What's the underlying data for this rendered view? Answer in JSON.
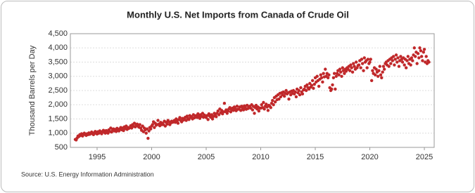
{
  "chart_data": {
    "type": "scatter",
    "title": "Monthly U.S. Net Imports from Canada of Crude Oil",
    "ylabel": "Thousand Barrels per Day",
    "source": "Source: U.S. Energy Information Administration",
    "color": "#c0282a",
    "grid": true,
    "xlim": [
      1992.55,
      2025.9
    ],
    "xticks": [
      1995,
      2000,
      2005,
      2010,
      2015,
      2020,
      2025
    ],
    "ylim": [
      500,
      4500
    ],
    "yticks": [
      500,
      {
        "value": 1000,
        "label": "1,000"
      },
      {
        "value": 1500,
        "label": "1,500"
      },
      {
        "value": 2000,
        "label": "2,000"
      },
      {
        "value": 2500,
        "label": "2,500"
      },
      {
        "value": 3000,
        "label": "3,000"
      },
      {
        "value": 3500,
        "label": "3,500"
      },
      {
        "value": 4000,
        "label": "4,000"
      },
      {
        "value": 4500,
        "label": "4,500"
      }
    ],
    "x": [
      1993,
      1993.08,
      1993.17,
      1993.25,
      1993.33,
      1993.42,
      1993.5,
      1993.58,
      1993.67,
      1993.75,
      1993.83,
      1993.92,
      1994,
      1994.08,
      1994.17,
      1994.25,
      1994.33,
      1994.42,
      1994.5,
      1994.58,
      1994.67,
      1994.75,
      1994.83,
      1994.92,
      1995,
      1995.08,
      1995.17,
      1995.25,
      1995.33,
      1995.42,
      1995.5,
      1995.58,
      1995.67,
      1995.75,
      1995.83,
      1995.92,
      1996,
      1996.08,
      1996.17,
      1996.25,
      1996.33,
      1996.42,
      1996.5,
      1996.58,
      1996.67,
      1996.75,
      1996.83,
      1996.92,
      1997,
      1997.08,
      1997.17,
      1997.25,
      1997.33,
      1997.42,
      1997.5,
      1997.58,
      1997.67,
      1997.75,
      1997.83,
      1997.92,
      1998,
      1998.08,
      1998.17,
      1998.25,
      1998.33,
      1998.42,
      1998.5,
      1998.58,
      1998.67,
      1998.75,
      1998.83,
      1998.92,
      1999,
      1999.08,
      1999.17,
      1999.25,
      1999.33,
      1999.42,
      1999.5,
      1999.58,
      1999.67,
      1999.75,
      1999.83,
      1999.92,
      2000,
      2000.08,
      2000.17,
      2000.25,
      2000.33,
      2000.42,
      2000.5,
      2000.58,
      2000.67,
      2000.75,
      2000.83,
      2000.92,
      2001,
      2001.08,
      2001.17,
      2001.25,
      2001.33,
      2001.42,
      2001.5,
      2001.58,
      2001.67,
      2001.75,
      2001.83,
      2001.92,
      2002,
      2002.08,
      2002.17,
      2002.25,
      2002.33,
      2002.42,
      2002.5,
      2002.58,
      2002.67,
      2002.75,
      2002.83,
      2002.92,
      2003,
      2003.08,
      2003.17,
      2003.25,
      2003.33,
      2003.42,
      2003.5,
      2003.58,
      2003.67,
      2003.75,
      2003.83,
      2003.92,
      2004,
      2004.08,
      2004.17,
      2004.25,
      2004.33,
      2004.42,
      2004.5,
      2004.58,
      2004.67,
      2004.75,
      2004.83,
      2004.92,
      2005,
      2005.08,
      2005.17,
      2005.25,
      2005.33,
      2005.42,
      2005.5,
      2005.58,
      2005.67,
      2005.75,
      2005.83,
      2005.92,
      2006,
      2006.08,
      2006.17,
      2006.25,
      2006.33,
      2006.42,
      2006.5,
      2006.58,
      2006.67,
      2006.75,
      2006.83,
      2006.92,
      2007,
      2007.08,
      2007.17,
      2007.25,
      2007.33,
      2007.42,
      2007.5,
      2007.58,
      2007.67,
      2007.75,
      2007.83,
      2007.92,
      2008,
      2008.08,
      2008.17,
      2008.25,
      2008.33,
      2008.42,
      2008.5,
      2008.58,
      2008.67,
      2008.75,
      2008.83,
      2008.92,
      2009,
      2009.08,
      2009.17,
      2009.25,
      2009.33,
      2009.42,
      2009.5,
      2009.58,
      2009.67,
      2009.75,
      2009.83,
      2009.92,
      2010,
      2010.08,
      2010.17,
      2010.25,
      2010.33,
      2010.42,
      2010.5,
      2010.58,
      2010.67,
      2010.75,
      2010.83,
      2010.92,
      2011,
      2011.08,
      2011.17,
      2011.25,
      2011.33,
      2011.42,
      2011.5,
      2011.58,
      2011.67,
      2011.75,
      2011.83,
      2011.92,
      2012,
      2012.08,
      2012.17,
      2012.25,
      2012.33,
      2012.42,
      2012.5,
      2012.58,
      2012.67,
      2012.75,
      2012.83,
      2012.92,
      2013,
      2013.08,
      2013.17,
      2013.25,
      2013.33,
      2013.42,
      2013.5,
      2013.58,
      2013.67,
      2013.75,
      2013.83,
      2013.92,
      2014,
      2014.08,
      2014.17,
      2014.25,
      2014.33,
      2014.42,
      2014.5,
      2014.58,
      2014.67,
      2014.75,
      2014.83,
      2014.92,
      2015,
      2015.08,
      2015.17,
      2015.25,
      2015.33,
      2015.42,
      2015.5,
      2015.58,
      2015.67,
      2015.75,
      2015.83,
      2015.92,
      2016,
      2016.08,
      2016.17,
      2016.25,
      2016.33,
      2016.42,
      2016.5,
      2016.58,
      2016.67,
      2016.75,
      2016.83,
      2016.92,
      2017,
      2017.08,
      2017.17,
      2017.25,
      2017.33,
      2017.42,
      2017.5,
      2017.58,
      2017.67,
      2017.75,
      2017.83,
      2017.92,
      2018,
      2018.08,
      2018.17,
      2018.25,
      2018.33,
      2018.42,
      2018.5,
      2018.58,
      2018.67,
      2018.75,
      2018.83,
      2018.92,
      2019,
      2019.08,
      2019.17,
      2019.25,
      2019.33,
      2019.42,
      2019.5,
      2019.58,
      2019.67,
      2019.75,
      2019.83,
      2019.92,
      2020,
      2020.08,
      2020.17,
      2020.25,
      2020.33,
      2020.42,
      2020.5,
      2020.58,
      2020.67,
      2020.75,
      2020.83,
      2020.92,
      2021,
      2021.08,
      2021.17,
      2021.25,
      2021.33,
      2021.42,
      2021.5,
      2021.58,
      2021.67,
      2021.75,
      2021.83,
      2021.92,
      2022,
      2022.08,
      2022.17,
      2022.25,
      2022.33,
      2022.42,
      2022.5,
      2022.58,
      2022.67,
      2022.75,
      2022.83,
      2022.92,
      2023,
      2023.08,
      2023.17,
      2023.25,
      2023.33,
      2023.42,
      2023.5,
      2023.58,
      2023.67,
      2023.75,
      2023.83,
      2023.92,
      2024,
      2024.08,
      2024.17,
      2024.25,
      2024.33,
      2024.42,
      2024.5,
      2024.58,
      2024.67,
      2024.75,
      2024.83,
      2024.92,
      2025,
      2025.08,
      2025.17,
      2025.25,
      2025.33,
      2025.42
    ],
    "values": [
      780,
      760,
      830,
      900,
      880,
      950,
      920,
      980,
      900,
      960,
      1000,
      950,
      920,
      980,
      950,
      1010,
      960,
      1000,
      1040,
      980,
      950,
      1020,
      1060,
      990,
      970,
      1050,
      1000,
      1080,
      1020,
      980,
      1060,
      1100,
      1030,
      1000,
      1090,
      1050,
      1000,
      1120,
      1060,
      1180,
      1040,
      1100,
      1150,
      1080,
      1130,
      1060,
      1170,
      1100,
      1080,
      1150,
      1200,
      1120,
      1180,
      1090,
      1220,
      1160,
      1250,
      1130,
      1200,
      1170,
      1200,
      1260,
      1180,
      1300,
      1240,
      1350,
      1220,
      1280,
      1320,
      1250,
      1210,
      1300,
      1180,
      1100,
      1250,
      1050,
      1180,
      1120,
      1000,
      1150,
      820,
      1080,
      1200,
      1150,
      1250,
      1300,
      1400,
      1200,
      1350,
      1280,
      1300,
      1450,
      1320,
      1260,
      1380,
      1300,
      1350,
      1300,
      1420,
      1250,
      1380,
      1320,
      1450,
      1400,
      1300,
      1360,
      1420,
      1380,
      1400,
      1450,
      1380,
      1500,
      1420,
      1350,
      1480,
      1550,
      1450,
      1400,
      1520,
      1460,
      1500,
      1560,
      1450,
      1600,
      1520,
      1480,
      1620,
      1550,
      1580,
      1500,
      1650,
      1540,
      1580,
      1620,
      1550,
      1680,
      1600,
      1520,
      1650,
      1590,
      1700,
      1560,
      1640,
      1600,
      1550,
      1620,
      1480,
      1680,
      1600,
      1560,
      1650,
      1500,
      1590,
      1700,
      1630,
      1580,
      1700,
      1780,
      1650,
      1850,
      1720,
      1800,
      1680,
      1750,
      2050,
      1760,
      1820,
      1700,
      1780,
      1850,
      1900,
      1750,
      1820,
      1880,
      1800,
      1920,
      1860,
      1790,
      1950,
      1840,
      1850,
      1920,
      1800,
      1950,
      1880,
      1820,
      1960,
      1900,
      1840,
      1980,
      1870,
      1910,
      1950,
      1880,
      2000,
      1820,
      1940,
      1700,
      1900,
      1980,
      1850,
      1920,
      1780,
      1880,
      1880,
      2000,
      1900,
      2080,
      1850,
      1950,
      2020,
      1920,
      1800,
      1980,
      1950,
      1900,
      2050,
      2150,
      2000,
      2250,
      2100,
      2300,
      2180,
      2350,
      2200,
      2400,
      2280,
      2420,
      2350,
      2450,
      2300,
      2400,
      2500,
      2380,
      2420,
      2200,
      2450,
      2350,
      2480,
      2400,
      2500,
      2380,
      2450,
      2280,
      2550,
      2420,
      2500,
      2350,
      2600,
      2450,
      2380,
      2520,
      2550,
      2650,
      2500,
      2700,
      2600,
      2550,
      2750,
      2620,
      2680,
      2850,
      2580,
      2720,
      2950,
      2800,
      3000,
      2850,
      2650,
      2900,
      3050,
      2950,
      2800,
      3100,
      2980,
      3250,
      3000,
      3100,
      2950,
      3050,
      2600,
      2500,
      2550,
      2700,
      2950,
      3100,
      2550,
      3000,
      3100,
      3200,
      3050,
      3250,
      3150,
      3000,
      3300,
      3200,
      3100,
      3250,
      3180,
      3300,
      3250,
      3350,
      3200,
      3400,
      3300,
      3150,
      3450,
      3350,
      3250,
      3500,
      3300,
      3380,
      3400,
      3550,
      3300,
      3600,
      3450,
      3200,
      3650,
      3500,
      3550,
      3300,
      3600,
      3450,
      3500,
      3600,
      2850,
      3200,
      3100,
      3300,
      3050,
      3250,
      3150,
      3000,
      3200,
      3350,
      3050,
      2950,
      3150,
      3350,
      3250,
      3450,
      3500,
      3400,
      3550,
      3350,
      3600,
      3450,
      3650,
      3550,
      3700,
      3400,
      3600,
      3750,
      3500,
      3650,
      3350,
      3550,
      3700,
      3600,
      3500,
      3650,
      3400,
      3600,
      3300,
      3550,
      3700,
      3450,
      3600,
      3400,
      3650,
      3550,
      3750,
      4000,
      3700,
      3850,
      3450,
      3800,
      3650,
      4000,
      3900,
      3700,
      3550,
      3850,
      3950,
      3500,
      3700,
      3450,
      3550,
      3500
    ]
  }
}
